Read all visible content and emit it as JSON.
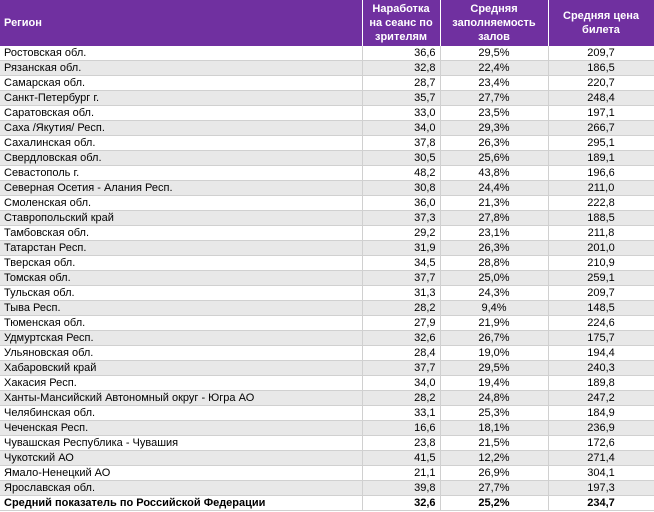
{
  "table": {
    "columns": [
      "Регион",
      "Наработка на сеанс по зрителям",
      "Средняя заполняемость залов",
      "Средняя цена билета"
    ],
    "rows": [
      [
        "Ростовская обл.",
        "36,6",
        "29,5%",
        "209,7"
      ],
      [
        "Рязанская обл.",
        "32,8",
        "22,4%",
        "186,5"
      ],
      [
        "Самарская обл.",
        "28,7",
        "23,4%",
        "220,7"
      ],
      [
        "Санкт-Петербург г.",
        "35,7",
        "27,7%",
        "248,4"
      ],
      [
        "Саратовская обл.",
        "33,0",
        "23,5%",
        "197,1"
      ],
      [
        "Саха /Якутия/ Респ.",
        "34,0",
        "29,3%",
        "266,7"
      ],
      [
        "Сахалинская обл.",
        "37,8",
        "26,3%",
        "295,1"
      ],
      [
        "Свердловская обл.",
        "30,5",
        "25,6%",
        "189,1"
      ],
      [
        "Севастополь г.",
        "48,2",
        "43,8%",
        "196,6"
      ],
      [
        "Северная Осетия - Алания Респ.",
        "30,8",
        "24,4%",
        "211,0"
      ],
      [
        "Смоленская обл.",
        "36,0",
        "21,3%",
        "222,8"
      ],
      [
        "Ставропольский край",
        "37,3",
        "27,8%",
        "188,5"
      ],
      [
        "Тамбовская обл.",
        "29,2",
        "23,1%",
        "211,8"
      ],
      [
        "Татарстан Респ.",
        "31,9",
        "26,3%",
        "201,0"
      ],
      [
        "Тверская обл.",
        "34,5",
        "28,8%",
        "210,9"
      ],
      [
        "Томская обл.",
        "37,7",
        "25,0%",
        "259,1"
      ],
      [
        "Тульская обл.",
        "31,3",
        "24,3%",
        "209,7"
      ],
      [
        "Тыва Респ.",
        "28,2",
        "9,4%",
        "148,5"
      ],
      [
        "Тюменская обл.",
        "27,9",
        "21,9%",
        "224,6"
      ],
      [
        "Удмуртская Респ.",
        "32,6",
        "26,7%",
        "175,7"
      ],
      [
        "Ульяновская обл.",
        "28,4",
        "19,0%",
        "194,4"
      ],
      [
        "Хабаровский край",
        "37,7",
        "29,5%",
        "240,3"
      ],
      [
        "Хакасия Респ.",
        "34,0",
        "19,4%",
        "189,8"
      ],
      [
        "Ханты-Мансийский Автономный округ - Югра АО",
        "28,2",
        "24,8%",
        "247,2"
      ],
      [
        "Челябинская обл.",
        "33,1",
        "25,3%",
        "184,9"
      ],
      [
        "Чеченская Респ.",
        "16,6",
        "18,1%",
        "236,9"
      ],
      [
        "Чувашская Республика - Чувашия",
        "23,8",
        "21,5%",
        "172,6"
      ],
      [
        "Чукотский АО",
        "41,5",
        "12,2%",
        "271,4"
      ],
      [
        "Ямало-Ненецкий АО",
        "21,1",
        "26,9%",
        "304,1"
      ],
      [
        "Ярославская обл.",
        "39,8",
        "27,7%",
        "197,3"
      ]
    ],
    "total": [
      "Средний показатель по Российской Федерации",
      "32,6",
      "25,2%",
      "234,7"
    ]
  }
}
